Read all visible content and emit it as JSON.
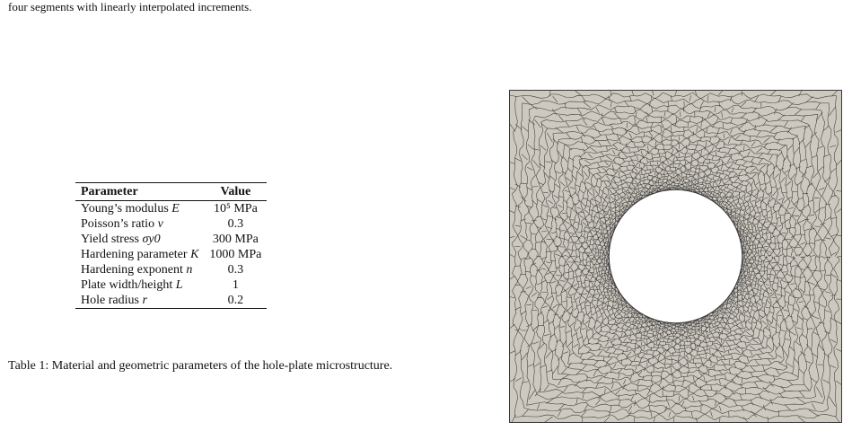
{
  "intro_text": "four segments with linearly interpolated increments.",
  "table": {
    "headers": [
      "Parameter",
      "Value"
    ],
    "rows": [
      {
        "name": "Young’s modulus",
        "symbol": "E",
        "value": "10⁵ MPa"
      },
      {
        "name": "Poisson’s ratio",
        "symbol": "ν",
        "value": "0.3"
      },
      {
        "name": "Yield stress",
        "symbol": "σy0",
        "value": "300 MPa"
      },
      {
        "name": "Hardening parameter",
        "symbol": "K",
        "value": "1000 MPa"
      },
      {
        "name": "Hardening exponent",
        "symbol": "n",
        "value": "0.3"
      },
      {
        "name": "Plate width/height",
        "symbol": "L",
        "value": "1"
      },
      {
        "name": "Hole radius",
        "symbol": "r",
        "value": "0.2"
      }
    ]
  },
  "caption": "Table 1: Material and geometric parameters of the hole-plate microstructure.",
  "figure": {
    "plate_color": "#cdc9bf",
    "line_color": "#3a3a3a",
    "hole_radius": 0.2,
    "plate_size": 1
  }
}
